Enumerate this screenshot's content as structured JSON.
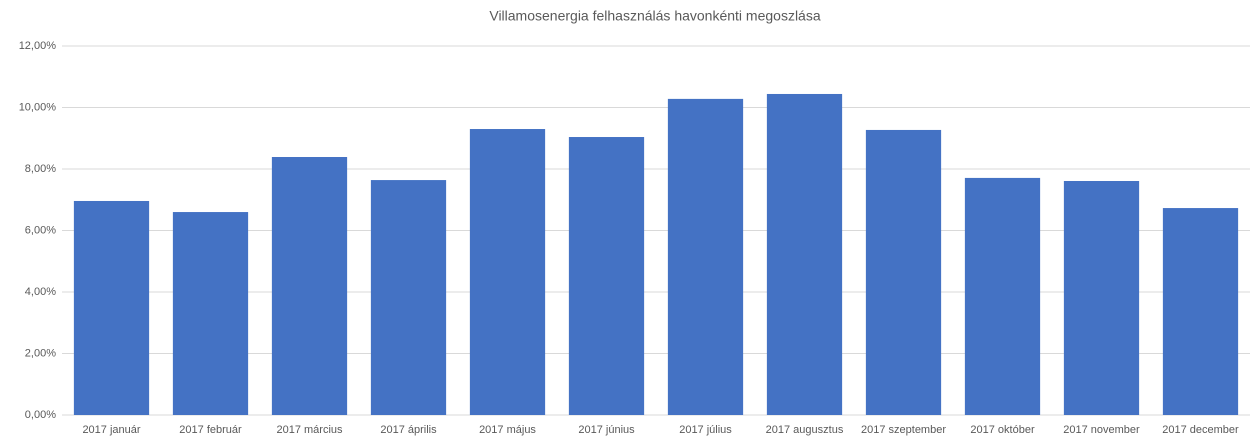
{
  "chart_data": {
    "type": "bar",
    "title": "Villamosenergia  felhasználás havonkénti megoszlása",
    "categories": [
      "2017 január",
      "2017 február",
      "2017 március",
      "2017 április",
      "2017 május",
      "2017 június",
      "2017 július",
      "2017 augusztus",
      "2017 szeptember",
      "2017 október",
      "2017 november",
      "2017 december"
    ],
    "values": [
      6.96,
      6.6,
      8.39,
      7.64,
      9.3,
      9.04,
      10.28,
      10.44,
      9.27,
      7.71,
      7.61,
      6.73
    ],
    "color": "#4472c4",
    "ylim": [
      0,
      12
    ],
    "yticks": [
      {
        "value": 0,
        "label": "0,00%"
      },
      {
        "value": 2,
        "label": "2,00%"
      },
      {
        "value": 4,
        "label": "4,00%"
      },
      {
        "value": 6,
        "label": "6,00%"
      },
      {
        "value": 8,
        "label": "8,00%"
      },
      {
        "value": 10,
        "label": "10,00%"
      },
      {
        "value": 12,
        "label": "12,00%"
      }
    ],
    "grid": true
  }
}
